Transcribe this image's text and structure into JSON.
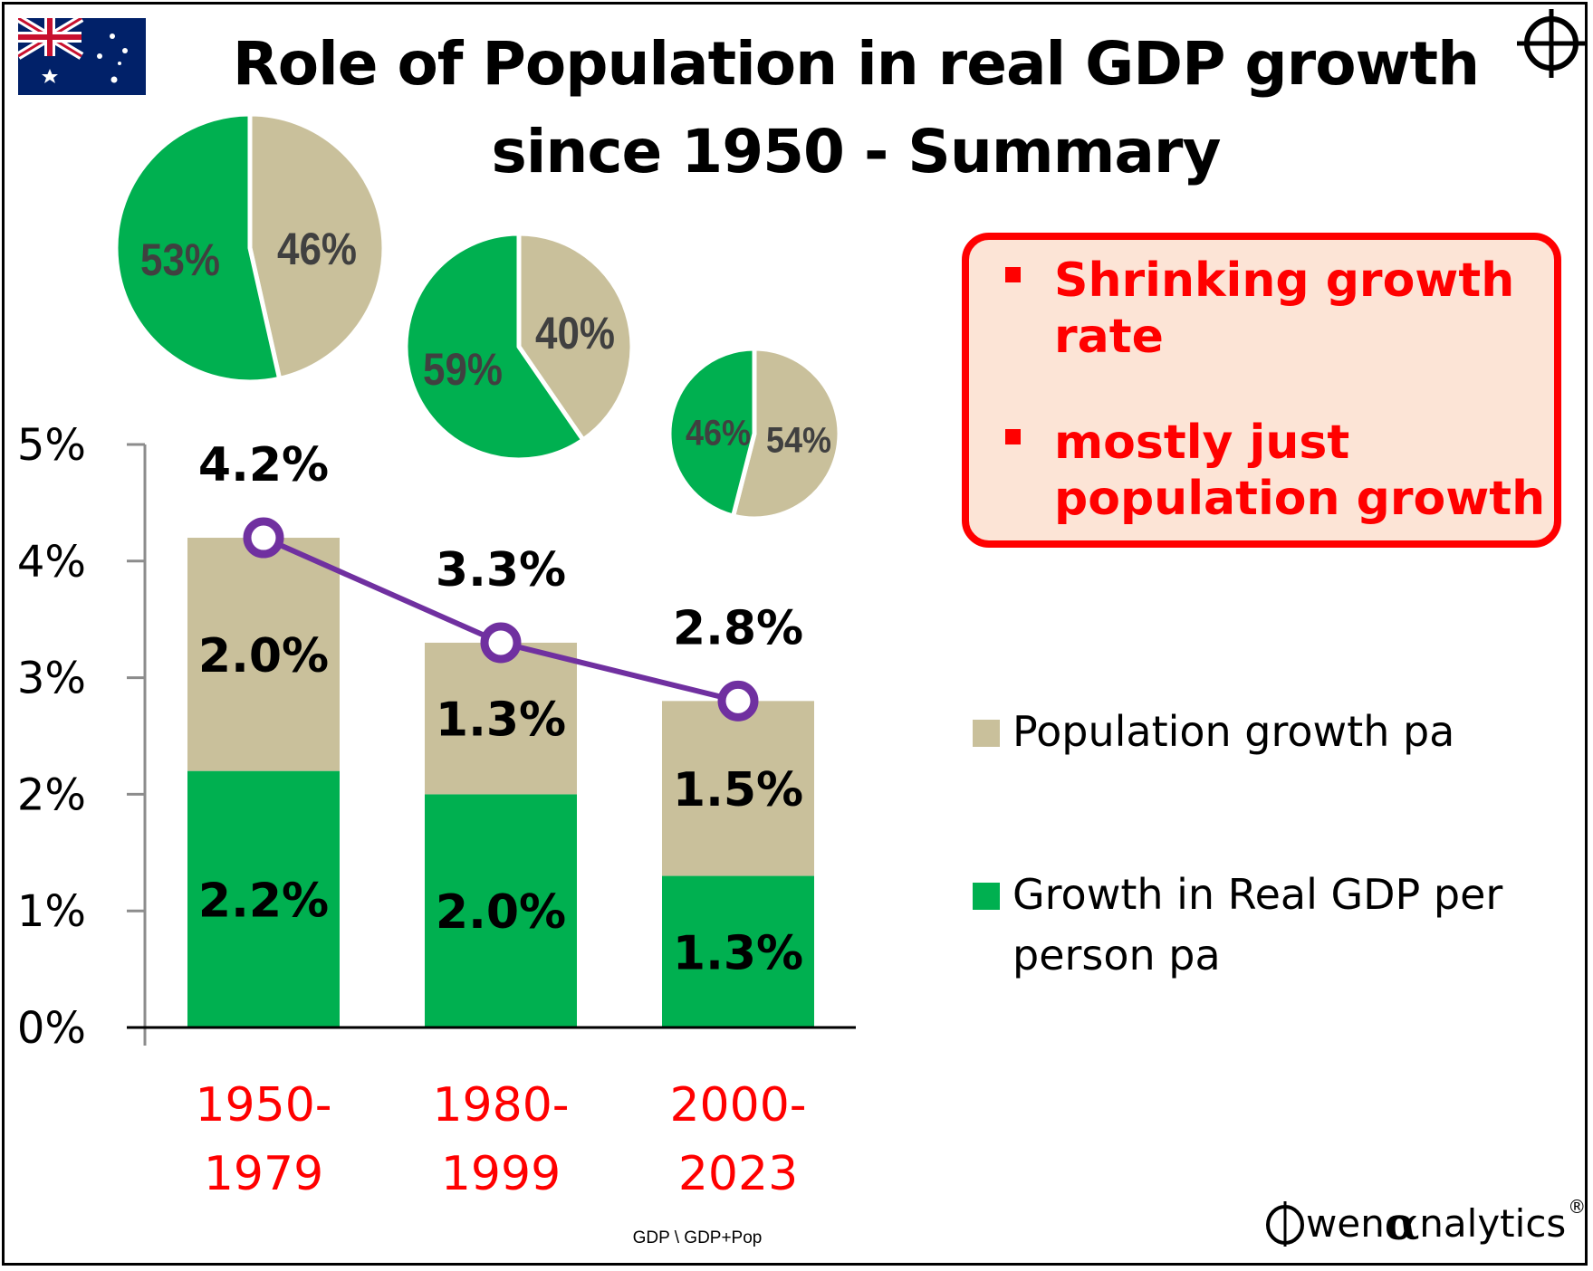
{
  "title": "Role of Population in real GDP growth since 1950 - Summary",
  "callout": {
    "items": [
      "Shrinking growth rate",
      "mostly just population growth"
    ],
    "border_color": "#ff0000",
    "background_color": "#fce4d6"
  },
  "footer": {
    "note": "GDP \\ GDP+Pop",
    "logo_parts": [
      "wen ",
      "α",
      "nalytics",
      "®"
    ],
    "logo_icon": "crosshair-icon"
  },
  "icons": {
    "flag": "australia-flag-icon",
    "corner": "crosshair-icon"
  },
  "chart_data": [
    {
      "type": "bar",
      "stacked": true,
      "categories": [
        "1950-\n1979",
        "1980-\n1999",
        "2000-\n2023"
      ],
      "category_color": "#ff0000",
      "series": [
        {
          "name": "Growth in Real GDP per person pa",
          "values": [
            2.2,
            2.0,
            1.3
          ],
          "labels": [
            "2.2%",
            "2.0%",
            "1.3%"
          ],
          "color": "#00b050"
        },
        {
          "name": "Population growth pa",
          "values": [
            2.0,
            1.3,
            1.5
          ],
          "labels": [
            "2.0%",
            "1.3%",
            "1.5%"
          ],
          "color": "#c9c09b"
        }
      ],
      "total_line": {
        "values": [
          4.2,
          3.3,
          2.8
        ],
        "labels": [
          "4.2%",
          "3.3%",
          "2.8%"
        ],
        "color": "#7030a0"
      },
      "ylim": [
        0,
        5
      ],
      "yticks": [
        0,
        1,
        2,
        3,
        4,
        5
      ],
      "ytick_labels": [
        "0%",
        "1%",
        "2%",
        "3%",
        "4%",
        "5%"
      ],
      "legend": {
        "placement": "right",
        "order": [
          "Population growth pa",
          "Growth in Real GDP per person pa"
        ]
      }
    },
    {
      "type": "pie",
      "title": "",
      "pies": [
        {
          "slices": [
            {
              "name": "Population growth pa",
              "value": 46,
              "label": "46%",
              "color": "#c9c09b"
            },
            {
              "name": "Growth in Real GDP per person pa",
              "value": 53,
              "label": "53%",
              "color": "#00b050"
            }
          ]
        },
        {
          "slices": [
            {
              "name": "Population growth pa",
              "value": 40,
              "label": "40%",
              "color": "#c9c09b"
            },
            {
              "name": "Growth in Real GDP per person pa",
              "value": 59,
              "label": "59%",
              "color": "#00b050"
            }
          ]
        },
        {
          "slices": [
            {
              "name": "Population growth pa",
              "value": 54,
              "label": "54%",
              "color": "#c9c09b"
            },
            {
              "name": "Growth in Real GDP per person pa",
              "value": 46,
              "label": "46%",
              "color": "#00b050"
            }
          ]
        }
      ]
    }
  ]
}
